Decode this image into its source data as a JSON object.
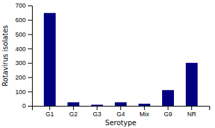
{
  "chart_data": {
    "type": "bar",
    "categories": [
      "G1",
      "G2",
      "G3",
      "G4",
      "Mix",
      "G9",
      "NR"
    ],
    "values": [
      648,
      25,
      8,
      25,
      15,
      110,
      300
    ],
    "color": "#000080",
    "xlabel": "Serotype",
    "ylabel": "Rotavirus isolates",
    "ylim": [
      0,
      700
    ],
    "yticks": [
      0,
      100,
      200,
      300,
      400,
      500,
      600,
      700
    ]
  }
}
